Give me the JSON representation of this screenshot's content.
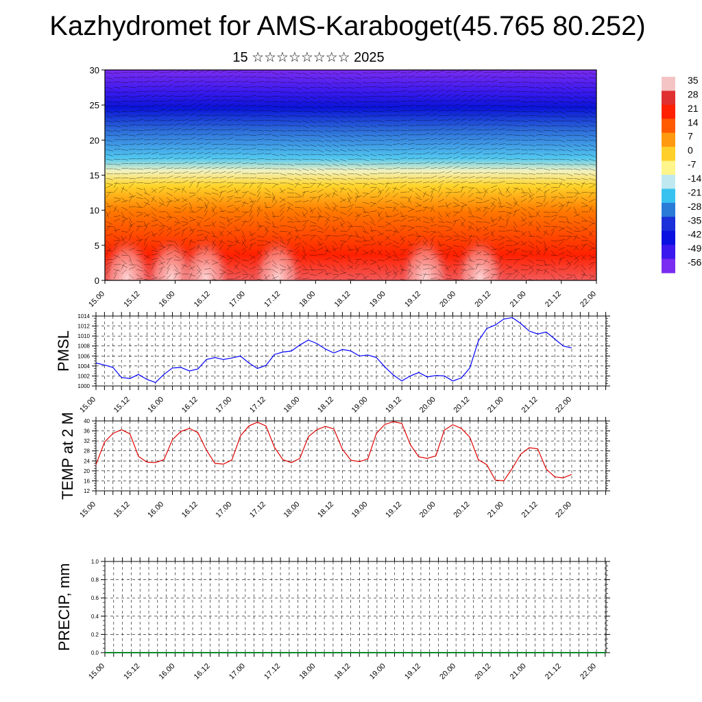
{
  "header": {
    "title": "Kazhydromet for AMS-Karaboget(45.765 80.252)",
    "subtitle": "15 ☆☆☆☆☆☆☆☆ 2025"
  },
  "chart_data": [
    {
      "type": "heatmap",
      "ylim": [
        0,
        30
      ],
      "yticks": [
        "0",
        "5",
        "10",
        "15",
        "20",
        "25",
        "30"
      ],
      "xticks": [
        "15.00",
        "15.12",
        "16.00",
        "16.12",
        "17.00",
        "17.12",
        "18.00",
        "18.12",
        "19.00",
        "19.12",
        "20.00",
        "20.12",
        "21.00",
        "21.12",
        "22.00"
      ],
      "colorbar": {
        "labels": [
          "35",
          "28",
          "21",
          "14",
          "7",
          "0",
          "-7",
          "-14",
          "-21",
          "-28",
          "-35",
          "-42",
          "-49",
          "-56"
        ],
        "colors": [
          "#f4c4c4",
          "#e03030",
          "#ff2000",
          "#ff5a00",
          "#ff9a10",
          "#ffd02a",
          "#fff58a",
          "#bfe8f0",
          "#38c2f0",
          "#2a7ad8",
          "#1a30d8",
          "#0a10e0",
          "#3a18ee",
          "#7a2cf0"
        ]
      },
      "overlay": "wind vectors"
    },
    {
      "type": "line",
      "ylabel": "PMSL",
      "ylim": [
        1000,
        1014
      ],
      "yticks": [
        "1000",
        "1002",
        "1004",
        "1006",
        "1008",
        "1010",
        "1012",
        "1014"
      ],
      "xticks": [
        "15.00",
        "15.12",
        "16.00",
        "16.12",
        "17.00",
        "17.12",
        "18.00",
        "18.12",
        "19.00",
        "19.12",
        "20.00",
        "20.12",
        "21.00",
        "21.12",
        "22.00"
      ],
      "color": "#0000ff",
      "x_hours": [
        0,
        3,
        6,
        9,
        12,
        15,
        18,
        21,
        24,
        27,
        30,
        33,
        36,
        39,
        42,
        45,
        48,
        51,
        54,
        57,
        60,
        63,
        66,
        69,
        72,
        75,
        78,
        81,
        84,
        87,
        90,
        93,
        96,
        99,
        102,
        105,
        108,
        111,
        114,
        117,
        120,
        123,
        126,
        129,
        132,
        135,
        138,
        141,
        144,
        147,
        150,
        153,
        156,
        159,
        162,
        165,
        168
      ],
      "values": [
        1004.6,
        1004.2,
        1003.7,
        1001.7,
        1001.5,
        1002.3,
        1001.3,
        1000.7,
        1002.3,
        1003.6,
        1003.7,
        1003.0,
        1003.4,
        1005.3,
        1005.7,
        1005.3,
        1005.6,
        1006.0,
        1004.6,
        1003.5,
        1004.1,
        1006.3,
        1006.8,
        1007.0,
        1008.2,
        1009.2,
        1008.5,
        1007.4,
        1006.6,
        1007.3,
        1007.0,
        1006.0,
        1006.2,
        1005.7,
        1003.8,
        1002.2,
        1001.0,
        1002.0,
        1002.7,
        1001.8,
        1002.1,
        1002.0,
        1001.0,
        1001.6,
        1003.6,
        1009.0,
        1011.5,
        1012.2,
        1013.4,
        1013.7,
        1012.5,
        1011.0,
        1010.4,
        1010.8,
        1009.4,
        1008.0,
        1007.6
      ]
    },
    {
      "type": "line",
      "ylabel": "TEMP at 2 M",
      "ylim": [
        12,
        40
      ],
      "yticks": [
        "12",
        "16",
        "20",
        "24",
        "28",
        "32",
        "36",
        "40"
      ],
      "xticks": [
        "15.00",
        "15.12",
        "16.00",
        "16.12",
        "17.00",
        "17.12",
        "18.00",
        "18.12",
        "19.00",
        "19.12",
        "20.00",
        "20.12",
        "21.00",
        "21.12",
        "22.00"
      ],
      "color": "#e00000",
      "x_hours": [
        0,
        3,
        6,
        9,
        12,
        15,
        18,
        21,
        24,
        27,
        30,
        33,
        36,
        39,
        42,
        45,
        48,
        51,
        54,
        57,
        60,
        63,
        66,
        69,
        72,
        75,
        78,
        81,
        84,
        87,
        90,
        93,
        96,
        99,
        102,
        105,
        108,
        111,
        114,
        117,
        120,
        123,
        126,
        129,
        132,
        135,
        138,
        141,
        144,
        147,
        150,
        153,
        156,
        159,
        162,
        165,
        168
      ],
      "values": [
        22.5,
        31.5,
        35.0,
        36.5,
        34.8,
        25.8,
        23.5,
        23.3,
        24.5,
        32.5,
        35.8,
        37.0,
        35.3,
        28.3,
        23.0,
        22.7,
        24.4,
        34.0,
        38.0,
        39.5,
        38.0,
        29.5,
        24.5,
        23.3,
        25.0,
        33.7,
        36.5,
        37.8,
        36.8,
        28.7,
        24.3,
        23.7,
        24.8,
        35.0,
        38.6,
        39.7,
        39.0,
        30.5,
        25.6,
        25.0,
        26.0,
        36.3,
        38.5,
        37.0,
        33.5,
        24.5,
        22.5,
        16.3,
        16.0,
        21.0,
        26.7,
        29.3,
        28.8,
        20.7,
        17.6,
        17.2,
        18.6
      ]
    },
    {
      "type": "line",
      "ylabel": "PRECIP, mm",
      "ylim": [
        0,
        1
      ],
      "yticks": [
        "0.0",
        "0.2",
        "0.4",
        "0.6",
        "0.8",
        "1.0"
      ],
      "xticks": [
        "15.00",
        "15.12",
        "16.00",
        "16.12",
        "17.00",
        "17.12",
        "18.00",
        "18.12",
        "19.00",
        "19.12",
        "20.00",
        "20.12",
        "21.00",
        "21.12",
        "22.00"
      ],
      "color": "#0a8a2a",
      "values": [
        0
      ]
    }
  ]
}
